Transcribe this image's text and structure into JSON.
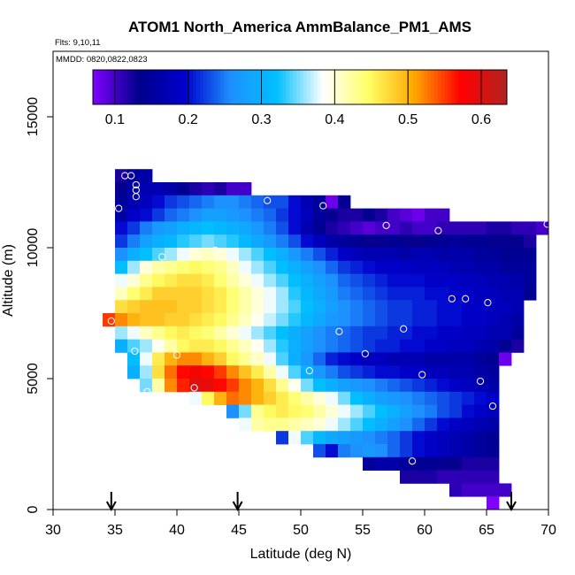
{
  "chart_data": {
    "type": "heatmap",
    "title": "ATOM1 North_America AmmBalance_PM1_AMS",
    "annotations": [
      "Flts: 9,10,11",
      "MMDD: 0820,0822,0823"
    ],
    "xlabel": "Latitude (deg N)",
    "ylabel": "Altitude (m)",
    "xlim": [
      30,
      70
    ],
    "ylim": [
      0,
      17500
    ],
    "x_ticks": [
      "30",
      "35",
      "40",
      "45",
      "50",
      "55",
      "60",
      "65",
      "70"
    ],
    "y_ticks": [
      "0",
      "5000",
      "10000",
      "15000"
    ],
    "colorbar": {
      "min": 0.07,
      "max": 0.635,
      "ticks": [
        "0.1",
        "0.2",
        "0.3",
        "0.4",
        "0.5",
        "0.6"
      ],
      "colors": [
        "#7f00ff",
        "#00008b",
        "#0000cd",
        "#1e90ff",
        "#00bfff",
        "#ffffff",
        "#ffff66",
        "#ffa500",
        "#ff0000",
        "#b22222"
      ]
    },
    "cell_size": {
      "lat": 1.0,
      "alt": 500
    },
    "rows": [
      {
        "alt": 12750,
        "lat0": 35,
        "values": [
          0.12,
          0.15,
          0.16
        ]
      },
      {
        "alt": 12250,
        "lat0": 35,
        "values": [
          0.13,
          0.16,
          0.17,
          0.17,
          0.16,
          0.14,
          0.12,
          0.11,
          0.12,
          0.1,
          0.1
        ]
      },
      {
        "alt": 11750,
        "lat0": 35,
        "values": [
          0.15,
          0.17,
          0.18,
          0.2,
          0.22,
          0.23,
          0.24,
          0.25,
          0.26,
          0.26,
          0.25,
          0.24,
          0.23,
          0.23,
          0.2,
          0.17,
          0.15,
          0.08,
          0.13
        ]
      },
      {
        "alt": 11250,
        "lat0": 35,
        "values": [
          0.16,
          0.19,
          0.2,
          0.22,
          0.24,
          0.25,
          0.26,
          0.28,
          0.28,
          0.27,
          0.26,
          0.25,
          0.24,
          0.22,
          0.2,
          0.18,
          0.15,
          0.13,
          0.12,
          0.12,
          0.13,
          0.12,
          0.1,
          0.09,
          0.08,
          0.1,
          0.1
        ]
      },
      {
        "alt": 10750,
        "lat0": 35,
        "values": [
          0.2,
          0.22,
          0.25,
          0.27,
          0.28,
          0.3,
          0.31,
          0.32,
          0.31,
          0.3,
          0.29,
          0.27,
          0.25,
          0.23,
          0.2,
          0.17,
          0.14,
          0.12,
          0.11,
          0.1,
          0.09,
          0.1,
          0.1,
          0.11,
          0.1,
          0.1,
          0.11,
          0.11,
          0.11,
          0.11,
          0.12,
          0.12,
          0.11,
          0.11,
          0.1
        ]
      },
      {
        "alt": 10250,
        "lat0": 35,
        "values": [
          0.22,
          0.25,
          0.28,
          0.3,
          0.31,
          0.33,
          0.34,
          0.35,
          0.34,
          0.33,
          0.31,
          0.29,
          0.27,
          0.25,
          0.23,
          0.2,
          0.18,
          0.16,
          0.15,
          0.14,
          0.13,
          0.13,
          0.14,
          0.13,
          0.13,
          0.14,
          0.14,
          0.15,
          0.14,
          0.14,
          0.13,
          0.13,
          0.13,
          0.12
        ]
      },
      {
        "alt": 9750,
        "lat0": 35,
        "values": [
          0.26,
          0.3,
          0.32,
          0.34,
          0.36,
          0.38,
          0.4,
          0.41,
          0.4,
          0.38,
          0.36,
          0.34,
          0.32,
          0.3,
          0.27,
          0.25,
          0.23,
          0.21,
          0.19,
          0.18,
          0.17,
          0.17,
          0.17,
          0.16,
          0.17,
          0.17,
          0.16,
          0.16,
          0.16,
          0.15,
          0.15,
          0.14,
          0.14,
          0.14
        ]
      },
      {
        "alt": 9250,
        "lat0": 35,
        "values": [
          0.32,
          0.36,
          0.4,
          0.42,
          0.43,
          0.44,
          0.45,
          0.44,
          0.43,
          0.41,
          0.38,
          0.36,
          0.34,
          0.32,
          0.3,
          0.28,
          0.26,
          0.24,
          0.22,
          0.21,
          0.2,
          0.19,
          0.19,
          0.19,
          0.18,
          0.18,
          0.18,
          0.17,
          0.17,
          0.16,
          0.16,
          0.15,
          0.15,
          0.15
        ]
      },
      {
        "alt": 8750,
        "lat0": 35,
        "values": [
          0.38,
          0.4,
          0.43,
          0.45,
          0.46,
          0.47,
          0.47,
          0.46,
          0.44,
          0.42,
          0.4,
          0.38,
          0.36,
          0.34,
          0.32,
          0.3,
          0.28,
          0.26,
          0.24,
          0.23,
          0.22,
          0.21,
          0.2,
          0.2,
          0.2,
          0.19,
          0.19,
          0.19,
          0.18,
          0.18,
          0.17,
          0.17,
          0.16,
          0.15
        ]
      },
      {
        "alt": 8250,
        "lat0": 35,
        "values": [
          0.41,
          0.44,
          0.46,
          0.48,
          0.48,
          0.48,
          0.48,
          0.47,
          0.46,
          0.44,
          0.42,
          0.4,
          0.38,
          0.36,
          0.33,
          0.31,
          0.29,
          0.27,
          0.25,
          0.24,
          0.23,
          0.22,
          0.21,
          0.21,
          0.21,
          0.2,
          0.2,
          0.19,
          0.19,
          0.18,
          0.18,
          0.17,
          0.17,
          0.14
        ]
      },
      {
        "alt": 7750,
        "lat0": 35,
        "values": [
          0.47,
          0.48,
          0.49,
          0.49,
          0.49,
          0.48,
          0.48,
          0.47,
          0.46,
          0.44,
          0.42,
          0.4,
          0.38,
          0.36,
          0.34,
          0.32,
          0.3,
          0.28,
          0.26,
          0.25,
          0.24,
          0.23,
          0.22,
          0.22,
          0.21,
          0.21,
          0.2,
          0.2,
          0.19,
          0.19,
          0.18,
          0.18,
          0.17
        ]
      },
      {
        "alt": 7250,
        "lat0": 34,
        "values": [
          0.55,
          0.52,
          0.5,
          0.49,
          0.49,
          0.48,
          0.48,
          0.47,
          0.46,
          0.45,
          0.43,
          0.41,
          0.39,
          0.37,
          0.35,
          0.33,
          0.31,
          0.29,
          0.27,
          0.26,
          0.25,
          0.24,
          0.23,
          0.22,
          0.22,
          0.21,
          0.21,
          0.2,
          0.2,
          0.19,
          0.19,
          0.18,
          0.17,
          0.16
        ]
      },
      {
        "alt": 6750,
        "lat0": 35,
        "values": [
          0.36,
          0.38,
          0.41,
          0.43,
          0.45,
          0.46,
          0.45,
          0.44,
          0.42,
          0.4,
          0.38,
          0.36,
          0.34,
          0.32,
          0.3,
          0.28,
          0.26,
          0.25,
          0.24,
          0.23,
          0.22,
          0.22,
          0.21,
          0.21,
          0.2,
          0.2,
          0.19,
          0.19,
          0.18,
          0.18,
          0.17,
          0.17,
          0.15
        ]
      },
      {
        "alt": 6250,
        "lat0": 35,
        "values": [
          0.3,
          0.34,
          0.36,
          0.39,
          0.42,
          0.45,
          0.46,
          0.46,
          0.45,
          0.43,
          0.41,
          0.39,
          0.36,
          0.33,
          0.3,
          0.28,
          0.26,
          0.25,
          0.24,
          0.23,
          0.22,
          0.21,
          0.21,
          0.2,
          0.2,
          0.19,
          0.19,
          0.18,
          0.18,
          0.17,
          0.16,
          0.14,
          0.12
        ]
      },
      {
        "alt": 5750,
        "lat0": 36,
        "values": [
          0.32,
          0.38,
          0.46,
          0.5,
          0.52,
          0.52,
          0.5,
          0.48,
          0.45,
          0.43,
          0.41,
          0.38,
          0.34,
          0.3,
          0.27,
          0.24,
          0.21,
          0.2,
          0.19,
          0.18,
          0.18,
          0.17,
          0.17,
          0.17,
          0.16,
          0.16,
          0.16,
          0.16,
          0.15,
          0.14,
          0.08
        ]
      },
      {
        "alt": 5250,
        "lat0": 36,
        "values": [
          0.3,
          0.36,
          0.47,
          0.53,
          0.57,
          0.58,
          0.57,
          0.55,
          0.52,
          0.49,
          0.46,
          0.42,
          0.38,
          0.34,
          0.3,
          0.27,
          0.25,
          0.23,
          0.22,
          0.21,
          0.2,
          0.2,
          0.19,
          0.19,
          0.18,
          0.18,
          0.17,
          0.17,
          0.16,
          0.15
        ]
      },
      {
        "alt": 4750,
        "lat0": 37,
        "values": [
          0.35,
          0.42,
          0.52,
          0.56,
          0.6,
          0.59,
          0.57,
          0.55,
          0.52,
          0.5,
          0.47,
          0.43,
          0.39,
          0.35,
          0.32,
          0.3,
          0.28,
          0.27,
          0.26,
          0.25,
          0.24,
          0.23,
          0.22,
          0.21,
          0.2,
          0.19,
          0.18,
          0.17,
          0.16
        ]
      },
      {
        "alt": 4250,
        "lat0": 41,
        "values": [
          0.38,
          0.45,
          0.5,
          0.53,
          0.52,
          0.5,
          0.48,
          0.46,
          0.44,
          0.42,
          0.4,
          0.38,
          0.35,
          0.32,
          0.3,
          0.28,
          0.27,
          0.26,
          0.25,
          0.24,
          0.23,
          0.22,
          0.21,
          0.2,
          0.19
        ]
      },
      {
        "alt": 3750,
        "lat0": 44,
        "values": [
          0.26,
          0.35,
          0.43,
          0.45,
          0.46,
          0.45,
          0.44,
          0.42,
          0.4,
          0.38,
          0.36,
          0.34,
          0.32,
          0.3,
          0.28,
          0.26,
          0.25,
          0.23,
          0.22,
          0.2,
          0.19,
          0.18
        ]
      },
      {
        "alt": 3250,
        "lat0": 45,
        "values": [
          0.38,
          0.42,
          0.43,
          0.43,
          0.42,
          0.41,
          0.4,
          0.38,
          0.36,
          0.34,
          0.32,
          0.3,
          0.28,
          0.26,
          0.24,
          0.22,
          0.2,
          0.19,
          0.18,
          0.17,
          0.16
        ]
      },
      {
        "alt": 2750,
        "lat0": 48,
        "values": [
          0.22,
          0.38,
          0.34,
          0.31,
          0.29,
          0.28,
          0.27,
          0.26,
          0.25,
          0.24,
          0.22,
          0.2,
          0.19,
          0.18,
          0.17,
          0.16,
          0.15,
          0.14
        ]
      },
      {
        "alt": 2250,
        "lat0": 51,
        "values": [
          0.23,
          0.2,
          0.25,
          0.26,
          0.27,
          0.26,
          0.24,
          0.22,
          0.2,
          0.19,
          0.18,
          0.17,
          0.16,
          0.15,
          0.14
        ]
      },
      {
        "alt": 1750,
        "lat0": 55,
        "values": [
          0.15,
          0.16,
          0.16,
          0.15,
          0.14,
          0.14,
          0.13,
          0.13,
          0.12,
          0.12,
          0.12
        ]
      },
      {
        "alt": 1250,
        "lat0": 58,
        "values": [
          0.12,
          0.12,
          0.12,
          0.11,
          0.11,
          0.11,
          0.11,
          0.11
        ]
      },
      {
        "alt": 750,
        "lat0": 62,
        "values": [
          0.11,
          0.1,
          0.1,
          0.1,
          0.1
        ]
      },
      {
        "alt": 250,
        "lat0": 65,
        "values": [
          0.07
        ]
      }
    ],
    "points": [
      {
        "lat": 35.8,
        "alt": 12750
      },
      {
        "lat": 36.3,
        "alt": 12750
      },
      {
        "lat": 36.7,
        "alt": 12400
      },
      {
        "lat": 36.7,
        "alt": 12200
      },
      {
        "lat": 36.7,
        "alt": 11950
      },
      {
        "lat": 35.3,
        "alt": 11500
      },
      {
        "lat": 47.3,
        "alt": 11800
      },
      {
        "lat": 51.8,
        "alt": 11600
      },
      {
        "lat": 56.9,
        "alt": 10850
      },
      {
        "lat": 61.1,
        "alt": 10650
      },
      {
        "lat": 69.9,
        "alt": 10900
      },
      {
        "lat": 43.1,
        "alt": 9900
      },
      {
        "lat": 38.8,
        "alt": 9650
      },
      {
        "lat": 62.2,
        "alt": 8050
      },
      {
        "lat": 63.3,
        "alt": 8050
      },
      {
        "lat": 65.1,
        "alt": 7900
      },
      {
        "lat": 34.7,
        "alt": 7200
      },
      {
        "lat": 53.1,
        "alt": 6800
      },
      {
        "lat": 58.3,
        "alt": 6900
      },
      {
        "lat": 36.6,
        "alt": 6050
      },
      {
        "lat": 40.0,
        "alt": 5900
      },
      {
        "lat": 46.1,
        "alt": 5750
      },
      {
        "lat": 55.2,
        "alt": 5950
      },
      {
        "lat": 50.7,
        "alt": 5300
      },
      {
        "lat": 59.8,
        "alt": 5150
      },
      {
        "lat": 64.5,
        "alt": 4900
      },
      {
        "lat": 41.4,
        "alt": 4650
      },
      {
        "lat": 37.6,
        "alt": 4500
      },
      {
        "lat": 65.5,
        "alt": 3950
      },
      {
        "lat": 59.0,
        "alt": 1850
      }
    ],
    "arrows_lat": [
      34.7,
      44.9,
      67.0
    ]
  }
}
